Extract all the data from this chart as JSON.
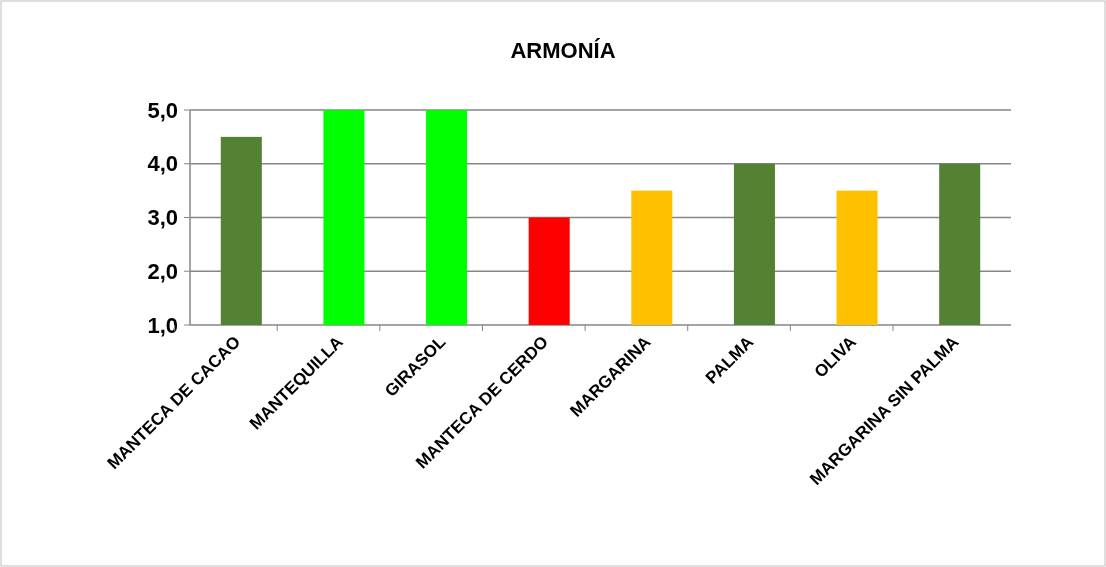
{
  "chart_data": {
    "type": "bar",
    "title": "ARMONÍA",
    "categories": [
      "MANTECA DE CACAO",
      "MANTEQUILLA",
      "GIRASOL",
      "MANTECA DE CERDO",
      "MARGARINA",
      "PALMA",
      "OLIVA",
      "MARGARINA SIN PALMA"
    ],
    "values": [
      4.5,
      5,
      5,
      3,
      3.5,
      4,
      3.5,
      4
    ],
    "colors": [
      "#548235",
      "#00ff00",
      "#00ff00",
      "#ff0000",
      "#ffc000",
      "#548235",
      "#ffc000",
      "#548235"
    ],
    "ylim": [
      1,
      5
    ],
    "yticks": [
      {
        "value": 1,
        "label": "1,0"
      },
      {
        "value": 2,
        "label": "2,0"
      },
      {
        "value": 3,
        "label": "3,0"
      },
      {
        "value": 4,
        "label": "4,0"
      },
      {
        "value": 5,
        "label": "5,0"
      }
    ],
    "grid": "y"
  }
}
